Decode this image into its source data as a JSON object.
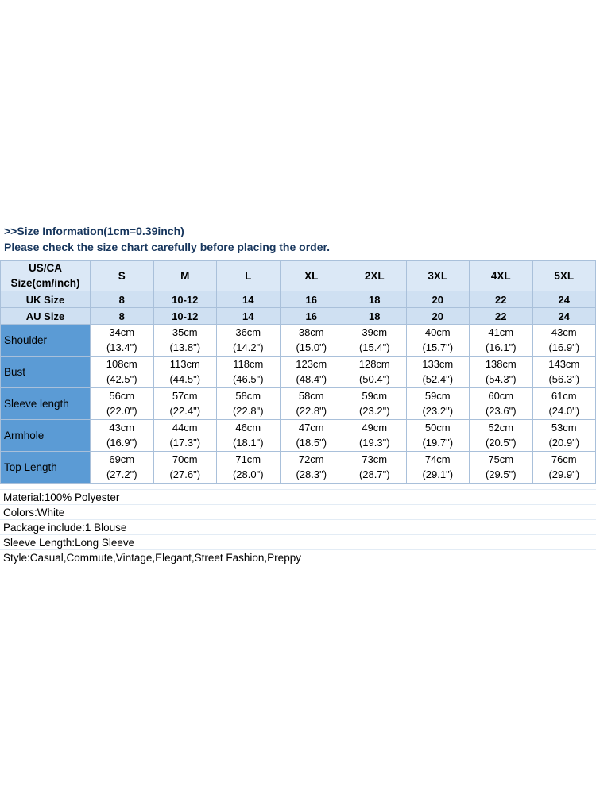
{
  "notice": {
    "line1": ">>Size Information(1cm=0.39inch)",
    "line2": "Please check the size chart carefully before placing the order."
  },
  "table": {
    "header": {
      "usca": "US/CA\nSize(cm/inch)",
      "sizes": [
        "S",
        "M",
        "L",
        "XL",
        "2XL",
        "3XL",
        "4XL",
        "5XL"
      ],
      "uk_label": "UK Size",
      "uk": [
        "8",
        "10-12",
        "14",
        "16",
        "18",
        "20",
        "22",
        "24"
      ],
      "au_label": "AU Size",
      "au": [
        "8",
        "10-12",
        "14",
        "16",
        "18",
        "20",
        "22",
        "24"
      ]
    },
    "rows": [
      {
        "label": "Shoulder",
        "cells": [
          "34cm\n(13.4\")",
          "35cm\n(13.8\")",
          "36cm\n(14.2\")",
          "38cm\n(15.0\")",
          "39cm\n(15.4\")",
          "40cm\n(15.7\")",
          "41cm\n(16.1\")",
          "43cm\n(16.9\")"
        ]
      },
      {
        "label": "Bust",
        "cells": [
          "108cm\n(42.5\")",
          "113cm\n(44.5\")",
          "118cm\n(46.5\")",
          "123cm\n(48.4\")",
          "128cm\n(50.4\")",
          "133cm\n(52.4\")",
          "138cm\n(54.3\")",
          "143cm\n(56.3\")"
        ]
      },
      {
        "label": "Sleeve length",
        "cells": [
          "56cm\n(22.0\")",
          "57cm\n(22.4\")",
          "58cm\n(22.8\")",
          "58cm\n(22.8\")",
          "59cm\n(23.2\")",
          "59cm\n(23.2\")",
          "60cm\n(23.6\")",
          "61cm\n(24.0\")"
        ]
      },
      {
        "label": "Armhole",
        "cells": [
          "43cm\n(16.9\")",
          "44cm\n(17.3\")",
          "46cm\n(18.1\")",
          "47cm\n(18.5\")",
          "49cm\n(19.3\")",
          "50cm\n(19.7\")",
          "52cm\n(20.5\")",
          "53cm\n(20.9\")"
        ]
      },
      {
        "label": "Top Length",
        "cells": [
          "69cm\n(27.2\")",
          "70cm\n(27.6\")",
          "71cm\n(28.0\")",
          "72cm\n(28.3\")",
          "73cm\n(28.7\")",
          "74cm\n(29.1\")",
          "75cm\n(29.5\")",
          "76cm\n(29.9\")"
        ]
      }
    ]
  },
  "details": {
    "lines": [
      "Material:100% Polyester",
      "Colors:White",
      "Package include:1 Blouse",
      "Sleeve Length:Long Sleeve",
      "Style:Casual,Commute,Vintage,Elegant,Street Fashion,Preppy"
    ]
  },
  "colors": {
    "notice_text": "#17365d",
    "header_row_bg": "#dbe8f6",
    "subheader_row_bg": "#cfe0f2",
    "row_label_bg": "#5b9bd5",
    "grid_line": "#a9c0da"
  }
}
